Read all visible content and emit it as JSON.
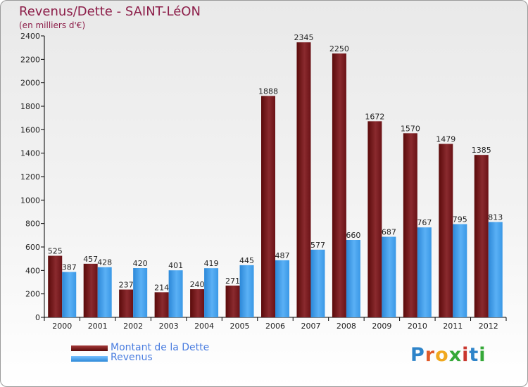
{
  "header": {
    "title": "Revenus/Dette - SAINT-LéON",
    "subtitle": "(en milliers d'€)"
  },
  "legend": {
    "debt_label": "Montant de la Dette",
    "revenue_label": "Revenus"
  },
  "logo": {
    "text": "Proxiti",
    "letter_colors": [
      "#2e84c9",
      "#e05a2a",
      "#f0a81f",
      "#35a838",
      "#c9362e",
      "#2e84c9",
      "#35a838"
    ]
  },
  "colors": {
    "debt": "#7a1c1c",
    "debt_dark": "#5a0a0a",
    "revenue": "#4aa3ef",
    "revenue_dark": "#2c88d8",
    "axis": "#000000"
  },
  "chart_data": {
    "type": "bar",
    "title": "Revenus/Dette - SAINT-LéON",
    "ylabel": "(en milliers d'€)",
    "xlabel": "",
    "categories": [
      "2000",
      "2001",
      "2002",
      "2003",
      "2004",
      "2005",
      "2006",
      "2007",
      "2008",
      "2009",
      "2010",
      "2011",
      "2012"
    ],
    "series": [
      {
        "name": "Montant de la Dette",
        "values": [
          525,
          457,
          237,
          214,
          240,
          271,
          1888,
          2345,
          2250,
          1672,
          1570,
          1479,
          1385
        ]
      },
      {
        "name": "Revenus",
        "values": [
          387,
          428,
          420,
          401,
          419,
          445,
          487,
          577,
          660,
          687,
          767,
          795,
          813
        ]
      }
    ],
    "ylim": [
      0,
      2400
    ],
    "yticks": [
      0,
      200,
      400,
      600,
      800,
      1000,
      1200,
      1400,
      1600,
      1800,
      2000,
      2200,
      2400
    ],
    "grid": false,
    "legend_position": "bottom-left"
  }
}
